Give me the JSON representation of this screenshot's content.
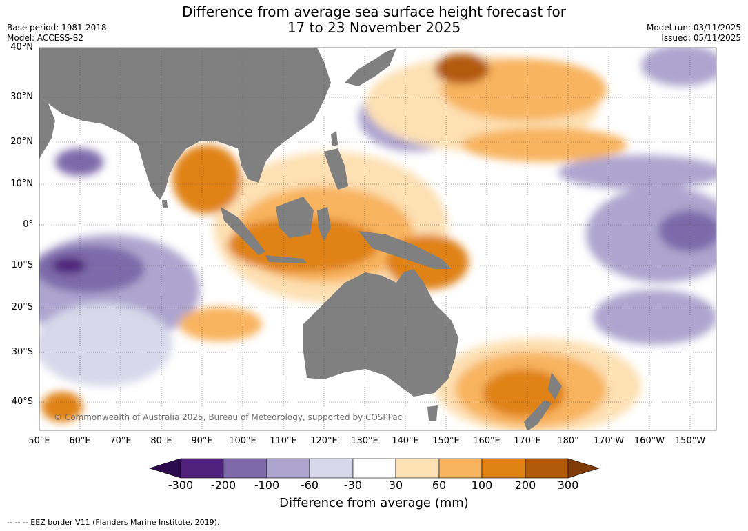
{
  "header": {
    "title_line1": "Difference from average sea surface height forecast for",
    "title_line2": "17 to 23 November 2025",
    "base_period": "Base period: 1981-2018",
    "model": "Model: ACCESS-S2",
    "model_run": "Model run: 03/11/2025",
    "issued": "Issued: 05/11/2025"
  },
  "map": {
    "lat_labels": [
      "40°N",
      "30°N",
      "20°N",
      "10°N",
      "0°",
      "10°S",
      "20°S",
      "30°S",
      "40°S"
    ],
    "lon_labels": [
      "50°E",
      "60°E",
      "70°E",
      "80°E",
      "90°E",
      "100°E",
      "110°E",
      "120°E",
      "130°E",
      "140°E",
      "150°E",
      "160°E",
      "170°E",
      "180°",
      "170°W",
      "160°W",
      "150°W"
    ],
    "copyright": "© Commonwealth of Australia 2025, Bureau of Meteorology, supported by COSPPac",
    "land_color": "#808080",
    "grid_color": "#555555"
  },
  "colorbar": {
    "title": "Difference from average (mm)",
    "levels": [
      "-300",
      "-200",
      "-100",
      "-60",
      "-30",
      "30",
      "60",
      "100",
      "200",
      "300"
    ],
    "colors": [
      "#2d0a4e",
      "#4f207c",
      "#7e6aaa",
      "#ada5cf",
      "#d8d8ea",
      "#ffffff",
      "#fde0b3",
      "#f8b45f",
      "#e08214",
      "#b25a0c",
      "#7f3b08"
    ]
  },
  "footnote": "--  --  -- EEZ border V11 (Flanders Marine Institute, 2019)."
}
